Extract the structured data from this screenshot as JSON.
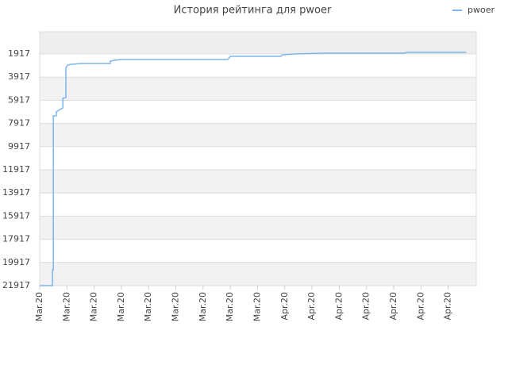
{
  "chart_data": {
    "type": "line",
    "title": "История рейтинга для pwoer",
    "legend": "top-right",
    "xlim": [
      0,
      16.03
    ],
    "xticks": [
      {
        "value": 0,
        "label": "Mar.20"
      },
      {
        "value": 1,
        "label": "Mar.20"
      },
      {
        "value": 2,
        "label": "Mar.20"
      },
      {
        "value": 3,
        "label": "Mar.20"
      },
      {
        "value": 4,
        "label": "Mar.20"
      },
      {
        "value": 5,
        "label": "Mar.20"
      },
      {
        "value": 6,
        "label": "Mar.20"
      },
      {
        "value": 7,
        "label": "Mar.20"
      },
      {
        "value": 8,
        "label": "Mar.20"
      },
      {
        "value": 9,
        "label": "Apr.20"
      },
      {
        "value": 10,
        "label": "Apr.20"
      },
      {
        "value": 11,
        "label": "Apr.20"
      },
      {
        "value": 12,
        "label": "Apr.20"
      },
      {
        "value": 13,
        "label": "Apr.20"
      },
      {
        "value": 14,
        "label": "Apr.20"
      },
      {
        "value": 15,
        "label": "Apr.20"
      }
    ],
    "ylim": [
      21917,
      0
    ],
    "yticks": [
      1917,
      3917,
      5917,
      7917,
      9917,
      11917,
      13917,
      15917,
      17917,
      19917,
      21917
    ],
    "grid": true,
    "series": [
      {
        "name": "pwoer",
        "color": "#7cb5ec",
        "x": [
          0,
          0.47,
          0.47,
          0.5,
          0.5,
          0.61,
          0.61,
          0.7,
          0.85,
          0.85,
          0.96,
          0.96,
          1.02,
          1.17,
          1.57,
          2.59,
          2.59,
          2.77,
          2.97,
          6.91,
          7.0,
          8.86,
          8.92,
          9.39,
          10.44,
          13.41,
          13.47,
          15.66
        ],
        "values": [
          21917,
          21917,
          20548,
          20548,
          7260,
          7260,
          6918,
          6781,
          6575,
          5753,
          5685,
          3151,
          2877,
          2808,
          2740,
          2740,
          2534,
          2466,
          2397,
          2397,
          2123,
          2123,
          1986,
          1918,
          1849,
          1849,
          1781,
          1781
        ]
      }
    ]
  }
}
